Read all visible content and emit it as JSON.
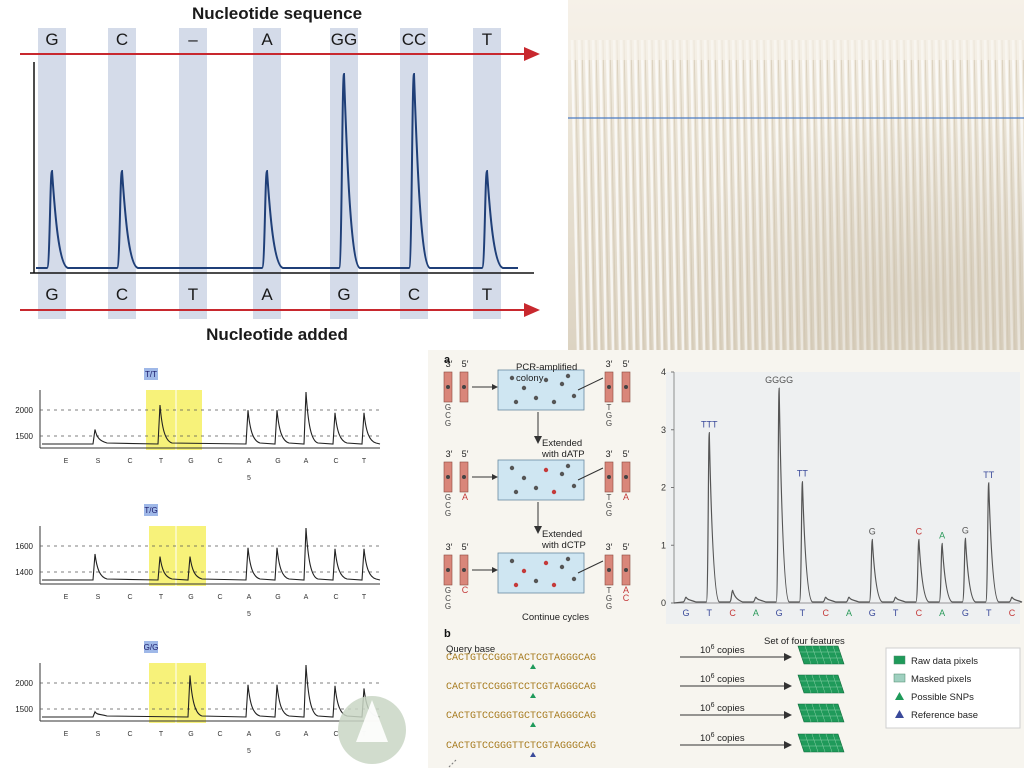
{
  "top_left": {
    "title": "Nucleotide sequence",
    "subtitle": "Nucleotide added",
    "top_labels": [
      "G",
      "C",
      "–",
      "A",
      "GG",
      "CC",
      "T"
    ],
    "bottom_labels": [
      "G",
      "C",
      "T",
      "A",
      "G",
      "C",
      "T"
    ],
    "peak_heights": [
      1,
      1,
      0,
      1,
      2,
      2,
      1
    ],
    "colors": {
      "band": "#d4dbe9",
      "arrow": "#c8282e",
      "trace": "#1f3f78"
    }
  },
  "bottom_left": {
    "panels": [
      {
        "title": "T/T",
        "yticks": [
          "2000",
          "1500"
        ],
        "xlabels": [
          "E",
          "S",
          "C",
          "T",
          "G",
          "C",
          "A",
          "G",
          "A",
          "C",
          "T"
        ],
        "sublabel": "5"
      },
      {
        "title": "T/G",
        "yticks": [
          "1600",
          "1400"
        ],
        "xlabels": [
          "E",
          "S",
          "C",
          "T",
          "G",
          "C",
          "A",
          "G",
          "A",
          "C",
          "T"
        ],
        "sublabel": "5"
      },
      {
        "title": "G/G",
        "yticks": [
          "2000",
          "1500"
        ],
        "xlabels": [
          "E",
          "S",
          "C",
          "T",
          "G",
          "C",
          "A",
          "G",
          "A",
          "C",
          "T"
        ],
        "sublabel": "5"
      }
    ],
    "colors": {
      "highlight": "#f7f27a",
      "title_bg": "#9fb8e8"
    }
  },
  "bottom_right": {
    "panel_a_label": "a",
    "panel_b_label": "b",
    "strand_labels": {
      "three_prime": "3′",
      "five_prime": "5′"
    },
    "colony_label": "PCR-amplified colony",
    "step1": "Extended with dATP",
    "step2": "Extended with dCTP",
    "step3": "Continue cycles",
    "strand_bases": [
      {
        "left": [
          "G",
          "C",
          "G"
        ],
        "right": [
          "T",
          "G",
          "G"
        ],
        "top": ""
      },
      {
        "left": [
          "G",
          "C",
          "G"
        ],
        "right": [
          "T",
          "G",
          "G"
        ],
        "top": "A"
      },
      {
        "left": [
          "G",
          "C",
          "G"
        ],
        "right": [
          "T",
          "G",
          "G"
        ],
        "top": "C"
      }
    ],
    "pyrogram": {
      "yticks": [
        "0",
        "1",
        "2",
        "3",
        "4"
      ],
      "xlabels": [
        "G",
        "T",
        "C",
        "A",
        "G",
        "T",
        "C",
        "A",
        "G",
        "T",
        "C",
        "A",
        "G",
        "T",
        "C"
      ],
      "xlabel_colors": [
        "#3a4a9a",
        "#3a4a9a",
        "#c43a3a",
        "#2a9a5a",
        "#3a4a9a",
        "#3a4a9a",
        "#c43a3a",
        "#2a9a5a",
        "#3a4a9a",
        "#3a4a9a",
        "#c43a3a",
        "#2a9a5a",
        "#3a4a9a",
        "#3a4a9a",
        "#c43a3a"
      ],
      "peak_labels": [
        "TTT",
        "GGGG",
        "TT",
        "G",
        "C",
        "A",
        "G",
        "TT"
      ]
    },
    "query_base_label": "Query base",
    "feature_set_label": "Set of four features",
    "sequences": [
      {
        "pre": "CACTGTCCGGGT",
        "base": "A",
        "post": "CTCGTAGGGCAG",
        "copies": "10",
        "exp": "6",
        "copies_word": "copies"
      },
      {
        "pre": "CACTGTCCGGGT",
        "base": "C",
        "post": "CTCGTAGGGCAG",
        "copies": "10",
        "exp": "6",
        "copies_word": "copies"
      },
      {
        "pre": "CACTGTCCGGGT",
        "base": "G",
        "post": "CTCGTAGGGCAG",
        "copies": "10",
        "exp": "6",
        "copies_word": "copies"
      },
      {
        "pre": "CACTGTCCGGGT",
        "base": "T",
        "post": "CTCGTAGGGCAG",
        "copies": "10",
        "exp": "6",
        "copies_word": "copies"
      }
    ],
    "legend": [
      "Raw data pixels",
      "Masked pixels",
      "Possible SNPs",
      "Reference base"
    ],
    "colors": {
      "dna_seq": "#a77b1f",
      "rod": "#d9867a",
      "green": "#1f9a5a",
      "blue": "#3a4a9a",
      "red": "#c43a3a"
    }
  }
}
